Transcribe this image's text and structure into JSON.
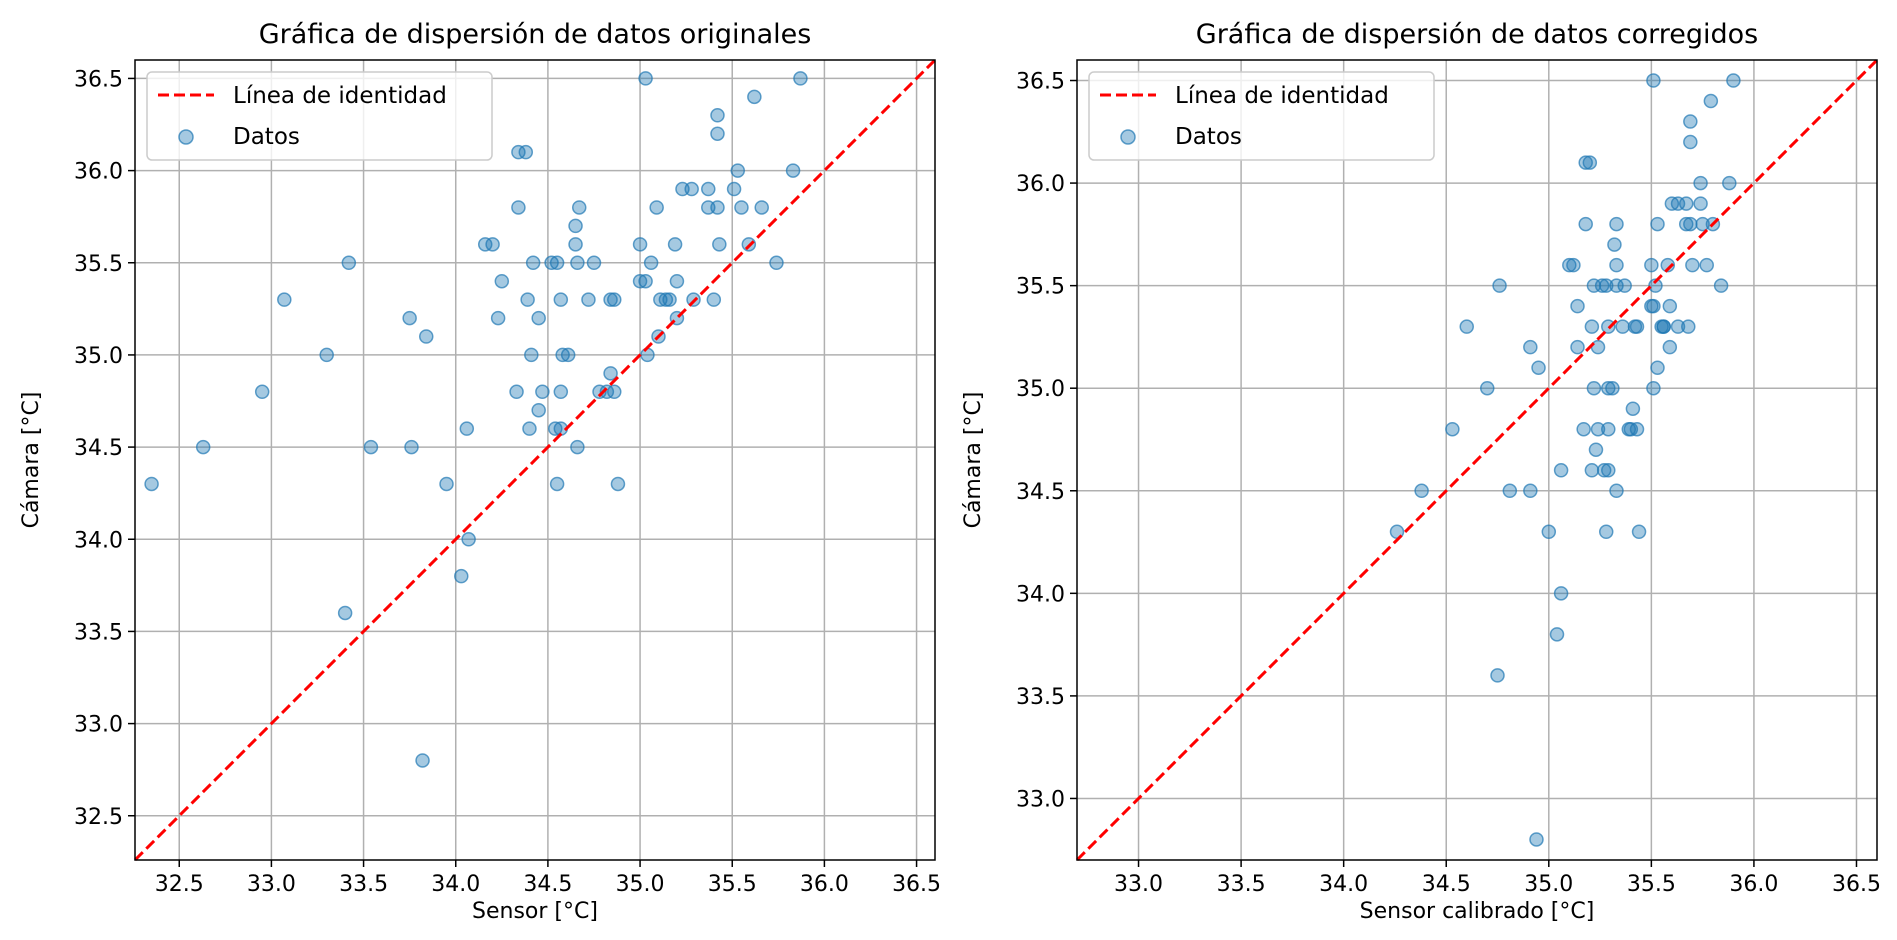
{
  "figure": {
    "background": "#ffffff"
  },
  "chart_data": [
    {
      "type": "scatter",
      "title": "Gráfica de dispersión de datos originales",
      "xlabel": "Sensor [°C]",
      "ylabel": "Cámara [°C]",
      "xlim": [
        32.26,
        36.6
      ],
      "ylim": [
        32.26,
        36.6
      ],
      "xticks": [
        "32.5",
        "33.0",
        "33.5",
        "34.0",
        "34.5",
        "35.0",
        "35.5",
        "36.0",
        "36.5"
      ],
      "yticks": [
        "32.5",
        "33.0",
        "33.5",
        "34.0",
        "34.5",
        "35.0",
        "35.5",
        "36.0",
        "36.5"
      ],
      "grid": true,
      "legend_position": "top-left",
      "identity_line": {
        "label": "Línea de identidad",
        "color": "#ff0000",
        "style": "dashed"
      },
      "series": [
        {
          "name": "Datos",
          "color": "#1f77b4",
          "points": [
            [
              32.35,
              34.3
            ],
            [
              32.63,
              34.5
            ],
            [
              32.95,
              34.8
            ],
            [
              33.07,
              35.3
            ],
            [
              33.3,
              35.0
            ],
            [
              33.4,
              33.6
            ],
            [
              33.42,
              35.5
            ],
            [
              33.54,
              34.5
            ],
            [
              33.75,
              35.2
            ],
            [
              33.76,
              34.5
            ],
            [
              33.82,
              32.8
            ],
            [
              33.84,
              35.1
            ],
            [
              33.95,
              34.3
            ],
            [
              34.03,
              33.8
            ],
            [
              34.06,
              34.6
            ],
            [
              34.07,
              34.0
            ],
            [
              34.16,
              35.6
            ],
            [
              34.2,
              35.6
            ],
            [
              34.23,
              35.2
            ],
            [
              34.25,
              35.4
            ],
            [
              34.33,
              34.8
            ],
            [
              34.34,
              35.8
            ],
            [
              34.34,
              36.1
            ],
            [
              34.38,
              36.1
            ],
            [
              34.39,
              35.3
            ],
            [
              34.4,
              34.6
            ],
            [
              34.41,
              35.0
            ],
            [
              34.42,
              35.5
            ],
            [
              34.45,
              34.7
            ],
            [
              34.45,
              35.2
            ],
            [
              34.47,
              34.8
            ],
            [
              34.52,
              35.5
            ],
            [
              34.54,
              34.6
            ],
            [
              34.55,
              35.5
            ],
            [
              34.55,
              34.3
            ],
            [
              34.57,
              35.3
            ],
            [
              34.57,
              34.8
            ],
            [
              34.57,
              34.6
            ],
            [
              34.58,
              35.0
            ],
            [
              34.61,
              35.0
            ],
            [
              34.65,
              35.7
            ],
            [
              34.65,
              35.6
            ],
            [
              34.66,
              35.5
            ],
            [
              34.66,
              34.5
            ],
            [
              34.67,
              35.8
            ],
            [
              34.72,
              35.3
            ],
            [
              34.75,
              35.5
            ],
            [
              34.78,
              34.8
            ],
            [
              34.82,
              34.8
            ],
            [
              34.84,
              34.9
            ],
            [
              34.84,
              35.3
            ],
            [
              34.86,
              34.8
            ],
            [
              34.86,
              35.3
            ],
            [
              34.88,
              34.3
            ],
            [
              35.0,
              35.4
            ],
            [
              35.0,
              35.6
            ],
            [
              35.03,
              36.5
            ],
            [
              35.03,
              35.4
            ],
            [
              35.04,
              35.0
            ],
            [
              35.06,
              35.5
            ],
            [
              35.09,
              35.8
            ],
            [
              35.1,
              35.1
            ],
            [
              35.11,
              35.3
            ],
            [
              35.14,
              35.3
            ],
            [
              35.16,
              35.3
            ],
            [
              35.19,
              35.6
            ],
            [
              35.2,
              35.2
            ],
            [
              35.2,
              35.4
            ],
            [
              35.23,
              35.9
            ],
            [
              35.28,
              35.9
            ],
            [
              35.29,
              35.3
            ],
            [
              35.37,
              35.8
            ],
            [
              35.37,
              35.9
            ],
            [
              35.4,
              35.3
            ],
            [
              35.42,
              36.3
            ],
            [
              35.42,
              36.2
            ],
            [
              35.42,
              35.8
            ],
            [
              35.43,
              35.6
            ],
            [
              35.51,
              35.9
            ],
            [
              35.53,
              36.0
            ],
            [
              35.55,
              35.8
            ],
            [
              35.59,
              35.6
            ],
            [
              35.62,
              36.4
            ],
            [
              35.66,
              35.8
            ],
            [
              35.74,
              35.5
            ],
            [
              35.83,
              36.0
            ],
            [
              35.87,
              36.5
            ]
          ]
        }
      ]
    },
    {
      "type": "scatter",
      "title": "Gráfica de dispersión de datos corregidos",
      "xlabel": "Sensor calibrado [°C]",
      "ylabel": "Cámara [°C]",
      "xlim": [
        32.7,
        36.6
      ],
      "ylim": [
        32.7,
        36.6
      ],
      "xticks": [
        "33.0",
        "33.5",
        "34.0",
        "34.5",
        "35.0",
        "35.5",
        "36.0",
        "36.5"
      ],
      "yticks": [
        "33.0",
        "33.5",
        "34.0",
        "34.5",
        "35.0",
        "35.5",
        "36.0",
        "36.5"
      ],
      "grid": true,
      "legend_position": "top-left",
      "identity_line": {
        "label": "Línea de identidad",
        "color": "#ff0000",
        "style": "dashed"
      },
      "series": [
        {
          "name": "Datos",
          "color": "#1f77b4",
          "points": [
            [
              34.26,
              34.3
            ],
            [
              34.38,
              34.5
            ],
            [
              34.53,
              34.8
            ],
            [
              34.6,
              35.3
            ],
            [
              34.7,
              35.0
            ],
            [
              34.75,
              33.6
            ],
            [
              34.76,
              35.5
            ],
            [
              34.81,
              34.5
            ],
            [
              34.91,
              35.2
            ],
            [
              34.91,
              34.5
            ],
            [
              34.94,
              32.8
            ],
            [
              34.95,
              35.1
            ],
            [
              35.0,
              34.3
            ],
            [
              35.04,
              33.8
            ],
            [
              35.06,
              34.6
            ],
            [
              35.06,
              34.0
            ],
            [
              35.1,
              35.6
            ],
            [
              35.12,
              35.6
            ],
            [
              35.14,
              35.2
            ],
            [
              35.14,
              35.4
            ],
            [
              35.17,
              34.8
            ],
            [
              35.18,
              35.8
            ],
            [
              35.18,
              36.1
            ],
            [
              35.2,
              36.1
            ],
            [
              35.21,
              35.3
            ],
            [
              35.21,
              34.6
            ],
            [
              35.22,
              35.0
            ],
            [
              35.22,
              35.5
            ],
            [
              35.23,
              34.7
            ],
            [
              35.24,
              35.2
            ],
            [
              35.24,
              34.8
            ],
            [
              35.26,
              35.5
            ],
            [
              35.27,
              34.6
            ],
            [
              35.28,
              35.5
            ],
            [
              35.28,
              34.3
            ],
            [
              35.29,
              35.3
            ],
            [
              35.29,
              34.8
            ],
            [
              35.29,
              34.6
            ],
            [
              35.29,
              35.0
            ],
            [
              35.31,
              35.0
            ],
            [
              35.32,
              35.7
            ],
            [
              35.33,
              35.6
            ],
            [
              35.33,
              35.5
            ],
            [
              35.33,
              34.5
            ],
            [
              35.33,
              35.8
            ],
            [
              35.36,
              35.3
            ],
            [
              35.37,
              35.5
            ],
            [
              35.39,
              34.8
            ],
            [
              35.4,
              34.8
            ],
            [
              35.41,
              34.9
            ],
            [
              35.42,
              35.3
            ],
            [
              35.43,
              34.8
            ],
            [
              35.43,
              35.3
            ],
            [
              35.44,
              34.3
            ],
            [
              35.5,
              35.4
            ],
            [
              35.5,
              35.6
            ],
            [
              35.51,
              36.5
            ],
            [
              35.51,
              35.4
            ],
            [
              35.51,
              35.0
            ],
            [
              35.52,
              35.5
            ],
            [
              35.53,
              35.8
            ],
            [
              35.53,
              35.1
            ],
            [
              35.55,
              35.3
            ],
            [
              35.56,
              35.3
            ],
            [
              35.56,
              35.3
            ],
            [
              35.58,
              35.6
            ],
            [
              35.59,
              35.2
            ],
            [
              35.59,
              35.4
            ],
            [
              35.6,
              35.9
            ],
            [
              35.63,
              35.9
            ],
            [
              35.63,
              35.3
            ],
            [
              35.67,
              35.8
            ],
            [
              35.67,
              35.9
            ],
            [
              35.68,
              35.3
            ],
            [
              35.69,
              36.3
            ],
            [
              35.69,
              36.2
            ],
            [
              35.69,
              35.8
            ],
            [
              35.7,
              35.6
            ],
            [
              35.74,
              35.9
            ],
            [
              35.74,
              36.0
            ],
            [
              35.75,
              35.8
            ],
            [
              35.77,
              35.6
            ],
            [
              35.79,
              36.4
            ],
            [
              35.8,
              35.8
            ],
            [
              35.84,
              35.5
            ],
            [
              35.88,
              36.0
            ],
            [
              35.9,
              36.5
            ]
          ]
        }
      ]
    }
  ]
}
